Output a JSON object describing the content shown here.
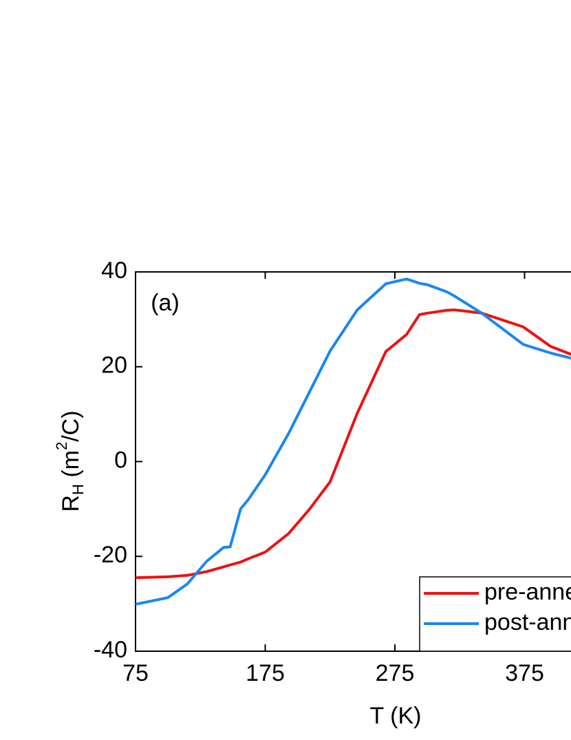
{
  "chart_data": {
    "type": "line",
    "x_label": "T (K)",
    "y_label": {
      "main": "R",
      "sub": "H",
      "open": " (m",
      "sup": "2",
      "close": "/C)"
    },
    "annotation": "(a)",
    "x": [
      75,
      100,
      115,
      130,
      143,
      148,
      156,
      162,
      175,
      193,
      209,
      225,
      246,
      268,
      284,
      294,
      300,
      315,
      321,
      342,
      374,
      395,
      411
    ],
    "series": [
      {
        "name": "pre-annealing",
        "color": "#ee1111",
        "values": [
          -24.5,
          -24.3,
          -24,
          -23.2,
          -22.2,
          -21.8,
          -21.2,
          -20.5,
          -19.1,
          -15.2,
          -10.1,
          -4.3,
          10.2,
          23.2,
          26.8,
          31,
          31.3,
          31.9,
          32,
          31.3,
          28.4,
          24.3,
          22.6
        ]
      },
      {
        "name": "post-annealing",
        "color": "#1a87f0",
        "values": [
          -30.1,
          -28.7,
          -25.8,
          -21,
          -18.1,
          -18,
          -10,
          -8,
          -2.8,
          5.9,
          14.6,
          23.3,
          32,
          37.5,
          38.5,
          37.6,
          37.3,
          35.8,
          34.9,
          31.3,
          24.7,
          22.9,
          21.8
        ]
      }
    ],
    "xlim": [
      75,
      475
    ],
    "xticks": [
      75,
      175,
      275,
      375
    ],
    "ylim": [
      -40,
      40
    ],
    "yticks": [
      -40,
      -20,
      0,
      20,
      40
    ],
    "legend": "lower right"
  }
}
